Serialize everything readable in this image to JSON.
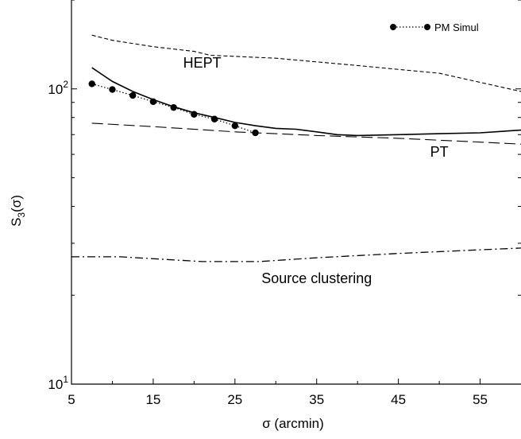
{
  "chart_data": {
    "type": "line",
    "title": "",
    "xlabel": "σ (arcmin)",
    "ylabel": "S_3(σ)",
    "y_scale": "log",
    "xlim": [
      5,
      60
    ],
    "ylim": [
      10,
      200
    ],
    "x_ticks": [
      5,
      15,
      25,
      35,
      45,
      55
    ],
    "x_tick_labels": [
      "5",
      "15",
      "25",
      "35",
      "45",
      "55"
    ],
    "y_ticks": [
      10,
      100
    ],
    "y_tick_labels": [
      {
        "base": "10",
        "exp": "1"
      },
      {
        "base": "10",
        "exp": "2"
      }
    ],
    "legend": {
      "position": "top-right",
      "entries": [
        "PM Simul"
      ]
    },
    "annotations": [
      {
        "text": "HEPT",
        "x": 21,
        "y": 118
      },
      {
        "text": "PT",
        "x": 50,
        "y": 59
      },
      {
        "text": "Source clustering",
        "x": 35,
        "y": 22
      }
    ],
    "series": [
      {
        "name": "PM Simul",
        "style": "dotted-markers",
        "x": [
          7.5,
          10,
          12.5,
          15,
          17.5,
          20,
          22.5,
          25,
          27.5
        ],
        "y": [
          104,
          99.5,
          95,
          90.5,
          86.5,
          82,
          79,
          75,
          71
        ]
      },
      {
        "style": "solid",
        "x": [
          7.5,
          10,
          12.5,
          15,
          17.5,
          20,
          22.5,
          25,
          27.5,
          30,
          32.5,
          35,
          37.5,
          40,
          45,
          50,
          55,
          60
        ],
        "y": [
          118,
          106,
          98,
          92,
          87,
          83,
          80,
          77,
          75,
          73.5,
          73,
          71.5,
          70,
          69.5,
          70,
          70.5,
          71,
          72.5
        ]
      },
      {
        "style": "short-dash",
        "x": [
          7.5,
          10,
          15,
          20,
          22,
          30,
          40,
          50,
          60
        ],
        "y": [
          152,
          146,
          139,
          134,
          130,
          127,
          120,
          113,
          98
        ]
      },
      {
        "style": "long-dash",
        "x": [
          7.5,
          15,
          25,
          35,
          45,
          55,
          60
        ],
        "y": [
          76.5,
          74.5,
          71.5,
          69.5,
          68,
          66,
          65
        ]
      },
      {
        "style": "dash-dot",
        "x": [
          5,
          11,
          21,
          28,
          35,
          45,
          55,
          60
        ],
        "y": [
          27,
          27,
          26,
          26,
          26.8,
          27.7,
          28.5,
          28.9
        ]
      }
    ]
  }
}
